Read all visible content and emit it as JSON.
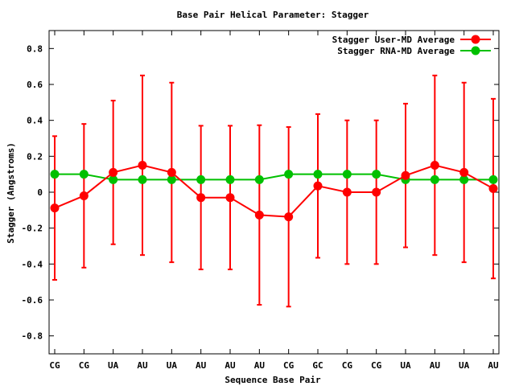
{
  "chart_data": {
    "type": "line",
    "title": "Base Pair Helical Parameter: Stagger",
    "xlabel": "Sequence Base Pair",
    "ylabel": "Stagger (Angstroms)",
    "categories": [
      "CG",
      "CG",
      "UA",
      "AU",
      "UA",
      "AU",
      "AU",
      "AU",
      "CG",
      "GC",
      "CG",
      "CG",
      "UA",
      "AU",
      "UA",
      "AU"
    ],
    "ylim": [
      -0.9,
      0.9
    ],
    "yticks": [
      -0.8,
      -0.6,
      -0.4,
      -0.2,
      0,
      0.2,
      0.4,
      0.6,
      0.8
    ],
    "ytick_labels": [
      "-0.8",
      "-0.6",
      "-0.4",
      "-0.2",
      "0",
      "0.2",
      "0.4",
      "0.6",
      "0.8"
    ],
    "legend_position": "top-right",
    "series": [
      {
        "name": "Stagger User-MD Average",
        "color": "#ff0000",
        "values": [
          -0.088,
          -0.02,
          0.11,
          0.15,
          0.11,
          -0.03,
          -0.03,
          -0.127,
          -0.137,
          0.035,
          0.0,
          0.0,
          0.093,
          0.15,
          0.11,
          0.02
        ],
        "error": [
          0.4,
          0.4,
          0.4,
          0.5,
          0.5,
          0.4,
          0.4,
          0.5,
          0.5,
          0.4,
          0.4,
          0.4,
          0.4,
          0.5,
          0.5,
          0.5
        ]
      },
      {
        "name": "Stagger RNA-MD Average",
        "color": "#00c000",
        "values": [
          0.1,
          0.1,
          0.07,
          0.07,
          0.07,
          0.07,
          0.07,
          0.07,
          0.1,
          0.1,
          0.1,
          0.1,
          0.07,
          0.07,
          0.07,
          0.07
        ]
      }
    ]
  }
}
